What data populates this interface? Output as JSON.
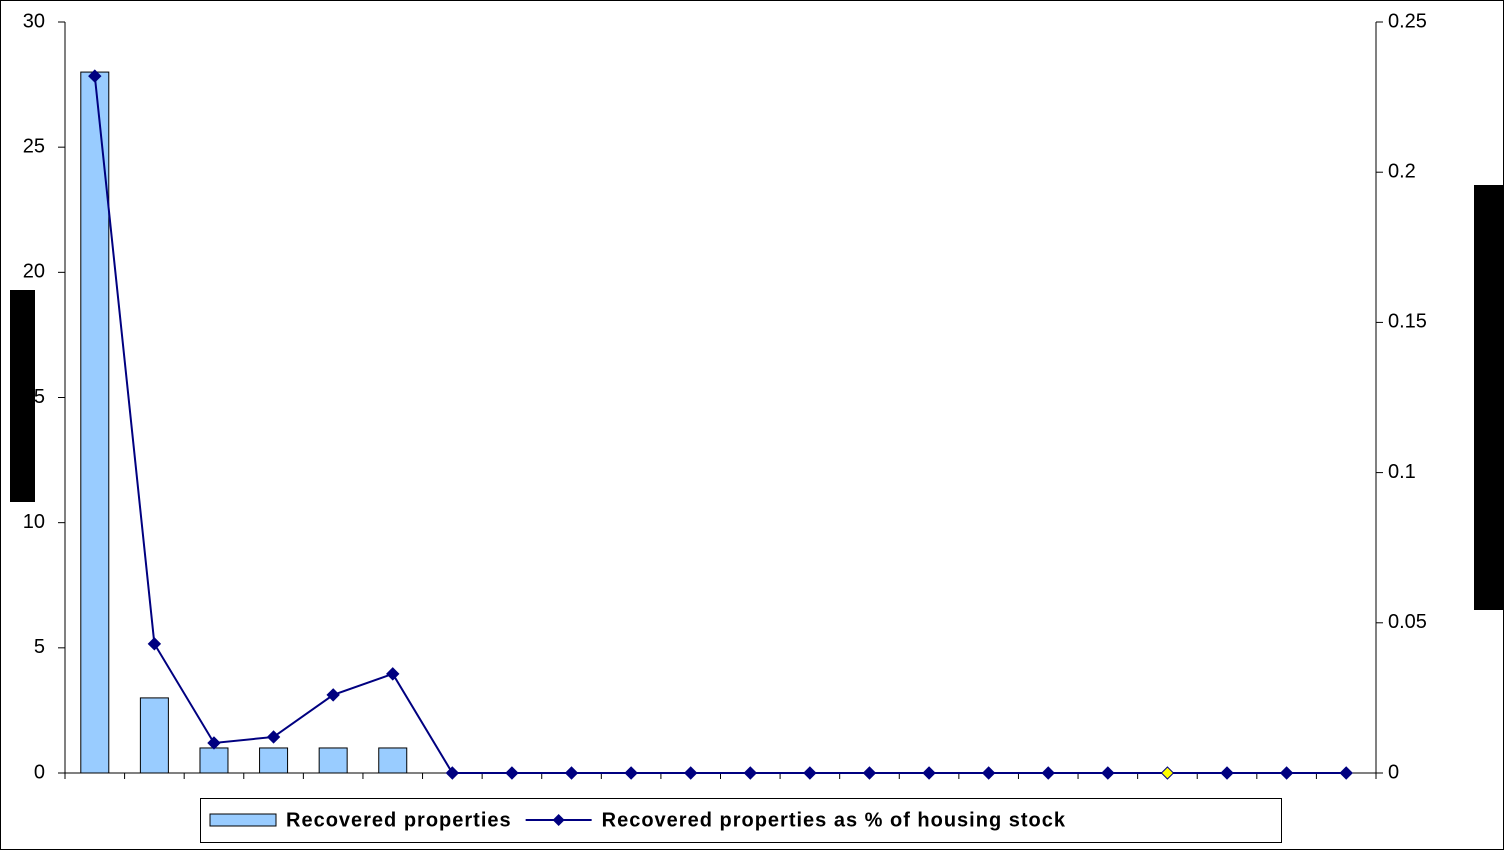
{
  "chart_data": {
    "type": "bar-line",
    "categories": [
      null,
      null,
      null,
      null,
      null,
      null,
      null,
      null,
      null,
      null,
      null,
      null,
      null,
      null,
      null,
      null,
      null,
      null,
      null,
      null,
      null,
      null
    ],
    "series": [
      {
        "name": "Recovered properties",
        "type": "bar",
        "color": "#99ccff",
        "values": [
          28,
          3,
          1,
          1,
          1,
          1,
          0,
          0,
          0,
          0,
          0,
          0,
          0,
          0,
          0,
          0,
          0,
          0,
          0,
          0,
          0,
          0
        ]
      },
      {
        "name": "Recovered properties as % of housing stock",
        "type": "line",
        "axis": "y2",
        "color": "#000080",
        "values": [
          0.232,
          0.043,
          0.01,
          0.012,
          0.026,
          0.033,
          0,
          0,
          0,
          0,
          0,
          0,
          0,
          0,
          0,
          0,
          0,
          0,
          0,
          0,
          0,
          0
        ]
      }
    ],
    "highlight": {
      "index": 18,
      "color": "#ffff00"
    },
    "ylim": [
      0,
      30
    ],
    "yticks": [
      0,
      5,
      10,
      15,
      20,
      25,
      30
    ],
    "y2lim": [
      0,
      0.25
    ],
    "y2ticks": [
      0,
      0.05,
      0.1,
      0.15,
      0.2,
      0.25
    ],
    "legend": "bottom"
  }
}
